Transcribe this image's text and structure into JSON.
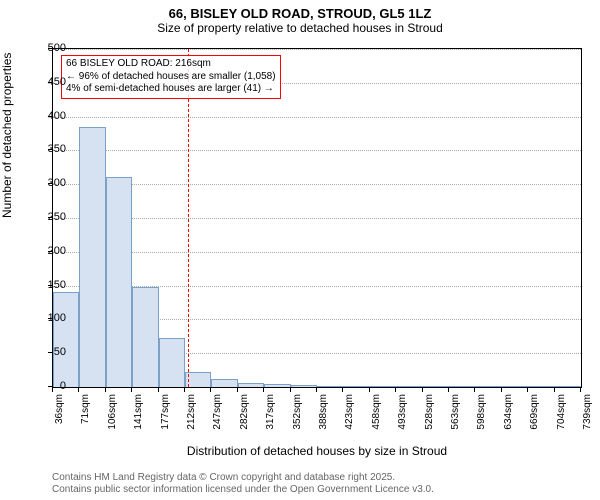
{
  "title": "66, BISLEY OLD ROAD, STROUD, GL5 1LZ",
  "subtitle": "Size of property relative to detached houses in Stroud",
  "ylabel": "Number of detached properties",
  "xlabel": "Distribution of detached houses by size in Stroud",
  "credits_line1": "Contains HM Land Registry data © Crown copyright and database right 2025.",
  "credits_line2": "Contains public sector information licensed under the Open Government Licence v3.0.",
  "chart": {
    "type": "histogram",
    "ylim": [
      0,
      500
    ],
    "ytick_step": 50,
    "xtick_labels": [
      "36sqm",
      "71sqm",
      "106sqm",
      "141sqm",
      "177sqm",
      "212sqm",
      "247sqm",
      "282sqm",
      "317sqm",
      "352sqm",
      "388sqm",
      "423sqm",
      "458sqm",
      "493sqm",
      "528sqm",
      "563sqm",
      "598sqm",
      "634sqm",
      "669sqm",
      "704sqm",
      "739sqm"
    ],
    "bar_values": [
      140,
      385,
      310,
      148,
      72,
      22,
      12,
      6,
      4,
      3,
      2,
      1,
      1,
      1,
      1,
      1,
      1,
      0,
      0,
      0
    ],
    "bar_fill": "#d6e2f2",
    "bar_stroke": "#7da0c9",
    "background_color": "#ffffff",
    "grid_color": "#aaaaaa",
    "marker": {
      "x_value_sqm": 216,
      "line_color": "#ff0000",
      "line_dash": "dashed"
    },
    "annotation": {
      "line1": "66 BISLEY OLD ROAD: 216sqm",
      "line2": "← 96% of detached houses are smaller (1,058)",
      "line3": "4% of semi-detached houses are larger (41) →",
      "border_color": "#ff0000",
      "text_color": "#000000"
    }
  }
}
